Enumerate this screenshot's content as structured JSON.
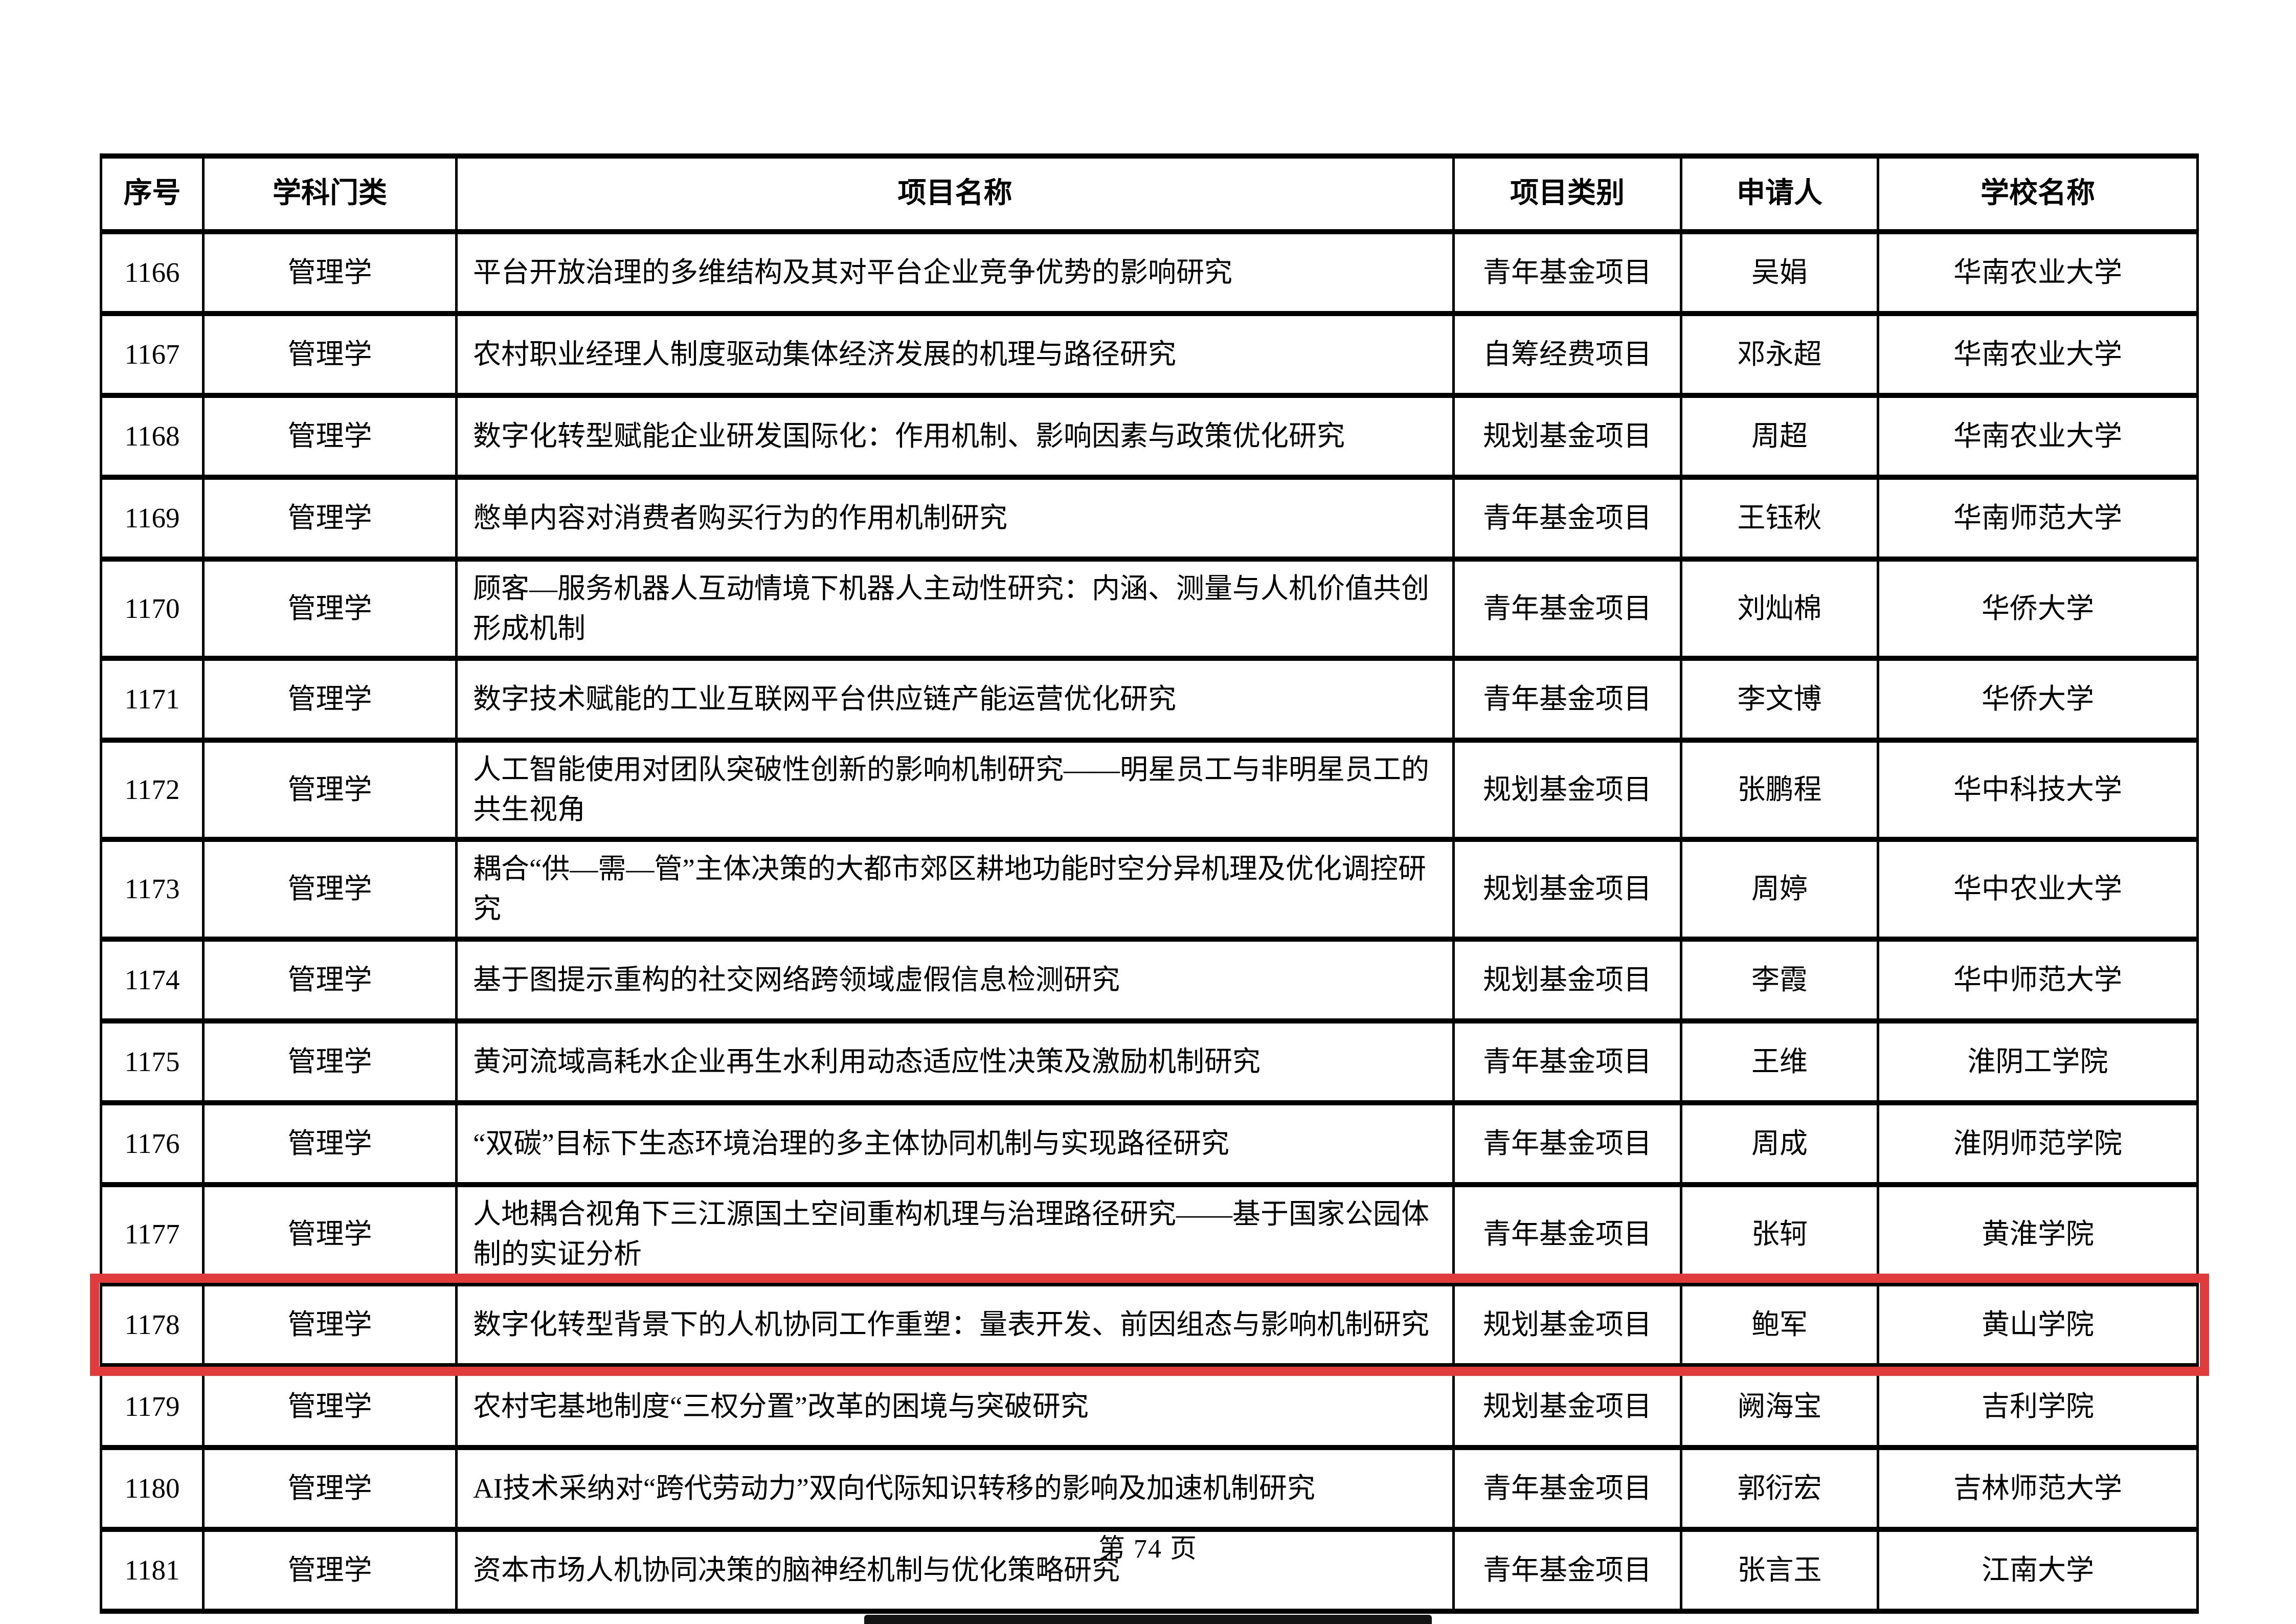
{
  "page": {
    "footer_label": "第 74 页"
  },
  "highlight": {
    "row_no": "1178",
    "color": "#e13b3c"
  },
  "table": {
    "headers": [
      "序号",
      "学科门类",
      "项目名称",
      "项目类别",
      "申请人",
      "学校名称"
    ],
    "rows": [
      {
        "no": "1166",
        "discipline": "管理学",
        "project": "平台开放治理的多维结构及其对平台企业竞争优势的影响研究",
        "category": "青年基金项目",
        "applicant": "吴娟",
        "school": "华南农业大学",
        "highlighted": false
      },
      {
        "no": "1167",
        "discipline": "管理学",
        "project": "农村职业经理人制度驱动集体经济发展的机理与路径研究",
        "category": "自筹经费项目",
        "applicant": "邓永超",
        "school": "华南农业大学",
        "highlighted": false
      },
      {
        "no": "1168",
        "discipline": "管理学",
        "project": "数字化转型赋能企业研发国际化：作用机制、影响因素与政策优化研究",
        "category": "规划基金项目",
        "applicant": "周超",
        "school": "华南农业大学",
        "highlighted": false
      },
      {
        "no": "1169",
        "discipline": "管理学",
        "project": "憋单内容对消费者购买行为的作用机制研究",
        "category": "青年基金项目",
        "applicant": "王钰秋",
        "school": "华南师范大学",
        "highlighted": false
      },
      {
        "no": "1170",
        "discipline": "管理学",
        "project": "顾客—服务机器人互动情境下机器人主动性研究：内涵、测量与人机价值共创形成机制",
        "category": "青年基金项目",
        "applicant": "刘灿棉",
        "school": "华侨大学",
        "highlighted": false
      },
      {
        "no": "1171",
        "discipline": "管理学",
        "project": "数字技术赋能的工业互联网平台供应链产能运营优化研究",
        "category": "青年基金项目",
        "applicant": "李文博",
        "school": "华侨大学",
        "highlighted": false
      },
      {
        "no": "1172",
        "discipline": "管理学",
        "project": "人工智能使用对团队突破性创新的影响机制研究——明星员工与非明星员工的共生视角",
        "category": "规划基金项目",
        "applicant": "张鹏程",
        "school": "华中科技大学",
        "highlighted": false
      },
      {
        "no": "1173",
        "discipline": "管理学",
        "project": "耦合“供—需—管”主体决策的大都市郊区耕地功能时空分异机理及优化调控研究",
        "category": "规划基金项目",
        "applicant": "周婷",
        "school": "华中农业大学",
        "highlighted": false
      },
      {
        "no": "1174",
        "discipline": "管理学",
        "project": "基于图提示重构的社交网络跨领域虚假信息检测研究",
        "category": "规划基金项目",
        "applicant": "李霞",
        "school": "华中师范大学",
        "highlighted": false
      },
      {
        "no": "1175",
        "discipline": "管理学",
        "project": "黄河流域高耗水企业再生水利用动态适应性决策及激励机制研究",
        "category": "青年基金项目",
        "applicant": "王维",
        "school": "淮阴工学院",
        "highlighted": false
      },
      {
        "no": "1176",
        "discipline": "管理学",
        "project": "“双碳”目标下生态环境治理的多主体协同机制与实现路径研究",
        "category": "青年基金项目",
        "applicant": "周成",
        "school": "淮阴师范学院",
        "highlighted": false
      },
      {
        "no": "1177",
        "discipline": "管理学",
        "project": "人地耦合视角下三江源国土空间重构机理与治理路径研究——基于国家公园体制的实证分析",
        "category": "青年基金项目",
        "applicant": "张轲",
        "school": "黄淮学院",
        "highlighted": false
      },
      {
        "no": "1178",
        "discipline": "管理学",
        "project": "数字化转型背景下的人机协同工作重塑：量表开发、前因组态与影响机制研究",
        "category": "规划基金项目",
        "applicant": "鲍军",
        "school": "黄山学院",
        "highlighted": true
      },
      {
        "no": "1179",
        "discipline": "管理学",
        "project": "农村宅基地制度“三权分置”改革的困境与突破研究",
        "category": "规划基金项目",
        "applicant": "阙海宝",
        "school": "吉利学院",
        "highlighted": false
      },
      {
        "no": "1180",
        "discipline": "管理学",
        "project": "AI技术采纳对“跨代劳动力”双向代际知识转移的影响及加速机制研究",
        "category": "青年基金项目",
        "applicant": "郭衍宏",
        "school": "吉林师范大学",
        "highlighted": false
      },
      {
        "no": "1181",
        "discipline": "管理学",
        "project": "资本市场人机协同决策的脑神经机制与优化策略研究",
        "category": "青年基金项目",
        "applicant": "张言玉",
        "school": "江南大学",
        "highlighted": false
      }
    ]
  }
}
